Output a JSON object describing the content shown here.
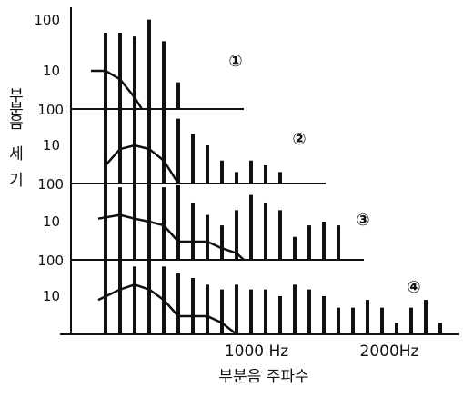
{
  "chart_data": {
    "type": "bar",
    "xlabel": "부분음 주파수",
    "ylabel": [
      "부",
      "분",
      "음",
      "세",
      "기"
    ],
    "x_ticks": [
      "1000 Hz",
      "2000Hz"
    ],
    "x_tick_values": [
      1000,
      2000
    ],
    "x_range": [
      0,
      2500
    ],
    "y_scale": "log",
    "y_range": [
      1,
      250
    ],
    "y_ticks": [
      "100",
      "10"
    ],
    "y_tick_values": [
      100,
      10
    ],
    "colors": {
      "ink": "#111111"
    },
    "series": [
      {
        "marker": "①",
        "x": [
          100,
          200,
          300,
          400,
          500,
          600
        ],
        "values": [
          100,
          100,
          80,
          220,
          60,
          5
        ],
        "envelope": {
          "x": [
            0,
            100,
            200,
            300,
            350
          ],
          "y": [
            10,
            10,
            6,
            2,
            1
          ]
        }
      },
      {
        "marker": "②",
        "x": [
          100,
          200,
          300,
          400,
          500,
          600,
          700,
          800,
          900,
          1000,
          1100,
          1200,
          1300
        ],
        "values": [
          100,
          100,
          100,
          100,
          100,
          50,
          20,
          10,
          4,
          2,
          4,
          3,
          2
        ],
        "envelope": {
          "x": [
            100,
            200,
            300,
            400,
            500,
            600
          ],
          "y": [
            3,
            8,
            10,
            8,
            4,
            1
          ]
        }
      },
      {
        "marker": "③",
        "x": [
          100,
          200,
          300,
          400,
          500,
          600,
          700,
          800,
          900,
          1000,
          1100,
          1200,
          1300,
          1400,
          1500,
          1600,
          1700
        ],
        "values": [
          100,
          80,
          100,
          100,
          80,
          90,
          30,
          15,
          8,
          20,
          50,
          30,
          20,
          4,
          8,
          10,
          8
        ],
        "envelope": {
          "x": [
            50,
            200,
            300,
            400,
            500,
            600,
            700,
            800,
            900,
            1000,
            1050
          ],
          "y": [
            12,
            15,
            12,
            10,
            8,
            3,
            3,
            3,
            2,
            1.5,
            1
          ]
        }
      },
      {
        "marker": "④",
        "x": [
          100,
          200,
          300,
          400,
          500,
          600,
          700,
          800,
          900,
          1000,
          1100,
          1200,
          1300,
          1400,
          1500,
          1600,
          1700,
          1800,
          1900,
          2000,
          2100,
          2200,
          2300,
          2400
        ],
        "values": [
          100,
          100,
          60,
          100,
          60,
          40,
          30,
          20,
          15,
          20,
          15,
          15,
          10,
          20,
          15,
          10,
          5,
          5,
          8,
          5,
          2,
          5,
          8,
          2
        ],
        "envelope": {
          "x": [
            50,
            200,
            300,
            400,
            500,
            600,
            700,
            800,
            900,
            1000
          ],
          "y": [
            8,
            15,
            20,
            15,
            8,
            3,
            3,
            3,
            2,
            1
          ]
        }
      }
    ]
  }
}
